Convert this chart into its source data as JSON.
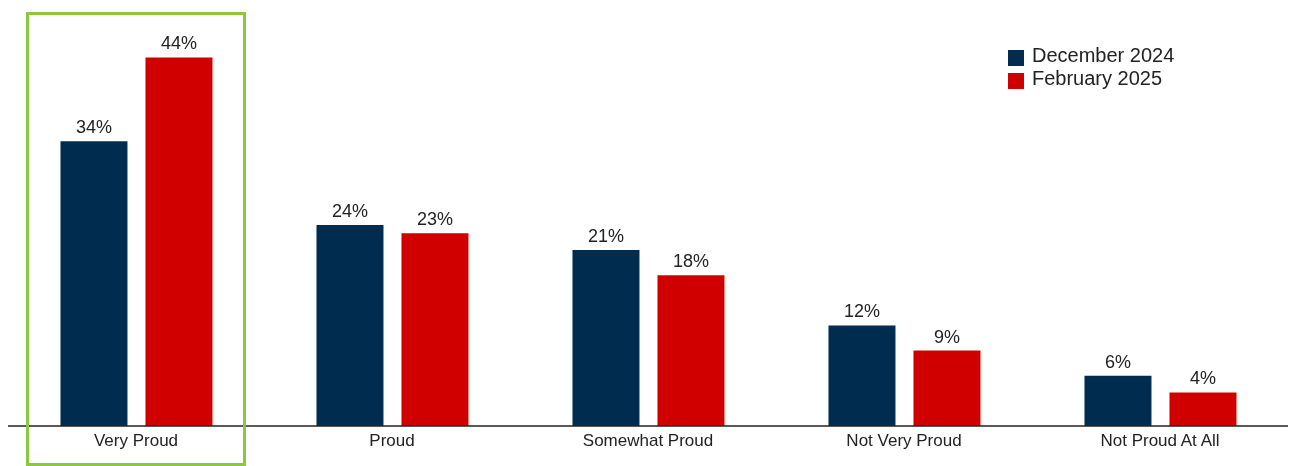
{
  "chart_data": {
    "type": "bar",
    "categories": [
      "Very Proud",
      "Proud",
      "Somewhat Proud",
      "Not Very Proud",
      "Not Proud At All"
    ],
    "series": [
      {
        "name": "December 2024",
        "color": "#002d4f",
        "values": [
          34,
          24,
          21,
          12,
          6
        ],
        "value_labels": [
          "34%",
          "24%",
          "21%",
          "12%",
          "6%"
        ]
      },
      {
        "name": "February 2025",
        "color": "#d10000",
        "values": [
          44,
          23,
          18,
          9,
          4
        ],
        "value_labels": [
          "44%",
          "23%",
          "18%",
          "9%",
          "4%"
        ]
      }
    ],
    "legend": "top right",
    "grid": false
  }
}
